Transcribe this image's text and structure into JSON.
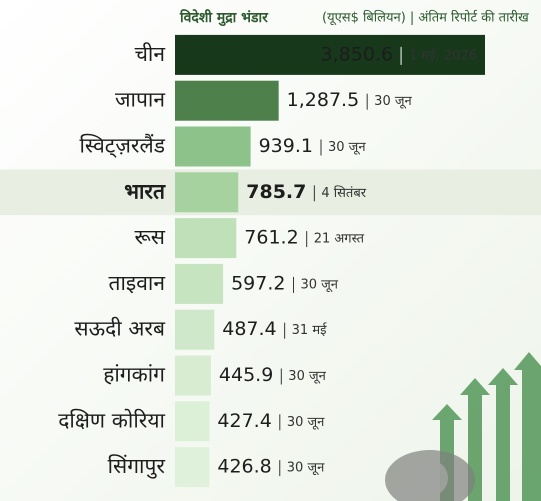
{
  "chart_data": {
    "type": "bar",
    "orientation": "horizontal",
    "title": "विदेशी मुद्रा भंडार",
    "subtitle": "(यूएस$ बिलियन) | अंतिम रिपोर्ट की तारीख",
    "categories": [
      "चीन",
      "जापान",
      "स्विट्ज़रलैंड",
      "भारत",
      "रूस",
      "ताइवान",
      "सऊदी अरब",
      "हांगकांग",
      "दक्षिण कोरिया",
      "सिंगापुर"
    ],
    "values": [
      3850.6,
      1287.5,
      939.1,
      785.7,
      761.2,
      597.2,
      487.4,
      445.9,
      427.4,
      426.8
    ],
    "value_labels": [
      "3,850.6",
      "1,287.5",
      "939.1",
      "785.7",
      "761.2",
      "597.2",
      "487.4",
      "445.9",
      "427.4",
      "426.8"
    ],
    "dates": [
      "1 मई, 2026",
      "30 जून",
      "30 जून",
      "4 सितंबर",
      "21 अगस्त",
      "30 जून",
      "31 मई",
      "30 जून",
      "30 जून",
      "30 जून"
    ],
    "colors": [
      "#17381b",
      "#4d804b",
      "#8dc28a",
      "#a6d29f",
      "#bfe0b8",
      "#c7e4c0",
      "#cfe8c9",
      "#d7ecd1",
      "#dcefd7",
      "#e0f1db"
    ],
    "highlight_index": 3
  }
}
